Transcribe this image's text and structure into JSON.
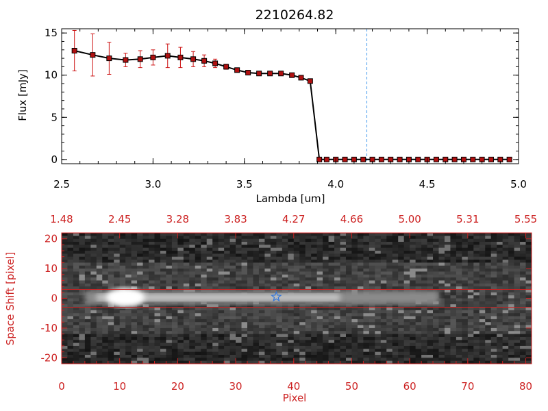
{
  "chart_data": [
    {
      "type": "line",
      "title": "2210264.82",
      "xlabel": "Lambda [um]",
      "ylabel": "Flux [mJy]",
      "xlim": [
        2.5,
        5.0
      ],
      "ylim": [
        -0.5,
        15.5
      ],
      "xticks": [
        2.5,
        3.0,
        3.5,
        4.0,
        4.5,
        5.0
      ],
      "xtick_labels": [
        "2.5",
        "3.0",
        "3.5",
        "4.0",
        "4.5",
        "5.0"
      ],
      "yticks": [
        0,
        5,
        10,
        15
      ],
      "ytick_labels": [
        "0",
        "5",
        "10",
        "15"
      ],
      "grid": false,
      "vline_x": 4.17,
      "series": [
        {
          "color": "#000000",
          "marker_color": "#b01010",
          "errorbar_color": "#cc1111",
          "x": [
            2.57,
            2.67,
            2.76,
            2.85,
            2.93,
            3.0,
            3.08,
            3.15,
            3.22,
            3.28,
            3.34,
            3.4,
            3.46,
            3.52,
            3.58,
            3.64,
            3.7,
            3.76,
            3.81,
            3.86,
            3.91,
            3.95,
            4.0,
            4.05,
            4.1,
            4.15,
            4.2,
            4.25,
            4.3,
            4.35,
            4.4,
            4.45,
            4.5,
            4.55,
            4.6,
            4.65,
            4.7,
            4.75,
            4.8,
            4.85,
            4.9,
            4.95
          ],
          "y": [
            12.9,
            12.4,
            12.0,
            11.8,
            11.9,
            12.1,
            12.3,
            12.1,
            11.9,
            11.7,
            11.4,
            11.0,
            10.6,
            10.3,
            10.2,
            10.2,
            10.2,
            10.0,
            9.7,
            9.3,
            0.0,
            0.0,
            0.0,
            0.0,
            0.0,
            0.0,
            0.0,
            0.0,
            0.0,
            0.0,
            0.0,
            0.0,
            0.0,
            0.0,
            0.0,
            0.0,
            0.0,
            0.0,
            0.0,
            0.0,
            0.0,
            0.0
          ],
          "yerr": [
            2.4,
            2.5,
            1.9,
            0.8,
            1.0,
            0.9,
            1.4,
            1.2,
            0.9,
            0.7,
            0.5,
            0.3,
            0.2,
            0.2,
            0.2,
            0.2,
            0.2,
            0.2,
            0.2,
            0.2,
            0,
            0,
            0,
            0,
            0,
            0,
            0,
            0,
            0,
            0,
            0,
            0,
            0,
            0,
            0,
            0,
            0,
            0,
            0,
            0,
            0,
            0
          ]
        }
      ]
    },
    {
      "type": "heatmap",
      "xlabel": "Pixel",
      "ylabel": "Space Shift [pixel]",
      "xlim": [
        0,
        81
      ],
      "ylim": [
        -22,
        22
      ],
      "xticks": [
        0,
        10,
        20,
        30,
        40,
        50,
        60,
        70,
        80
      ],
      "xtick_labels": [
        "0",
        "10",
        "20",
        "30",
        "40",
        "50",
        "60",
        "70",
        "80"
      ],
      "yticks": [
        -20,
        -10,
        0,
        10,
        20
      ],
      "ytick_labels": [
        "-20",
        "-10",
        "0",
        "10",
        "20"
      ],
      "top_axis_tick_labels": [
        "1.48",
        "2.45",
        "3.28",
        "3.83",
        "4.27",
        "4.66",
        "5.00",
        "5.31",
        "5.55"
      ],
      "aperture_lines_y": [
        3,
        -3
      ],
      "marker": {
        "x": 37,
        "y": 0.5,
        "color": "#3377dd"
      },
      "trace_center_y": 0.3,
      "bright_peak_x": 11,
      "frame_color": "#cc2020"
    }
  ],
  "colors": {
    "frame_red": "#cc2020",
    "dashed_line": "#4499ee"
  }
}
